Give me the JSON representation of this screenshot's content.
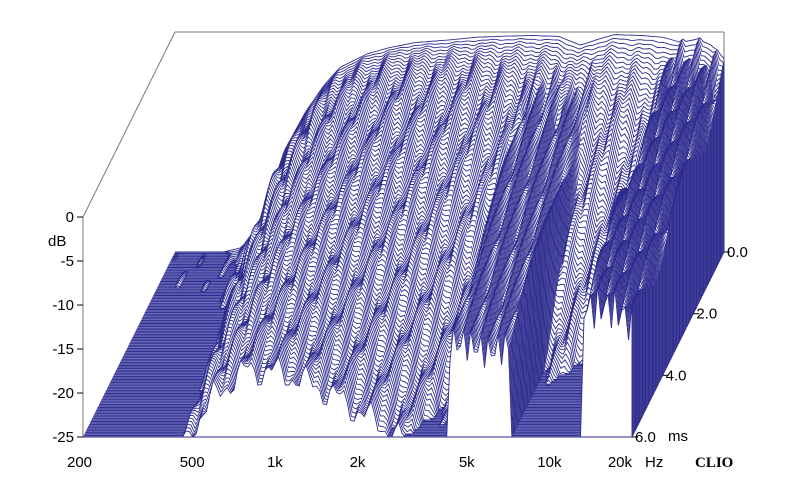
{
  "chart_data": {
    "type": "waterfall",
    "brand": "CLIO",
    "x_axis": {
      "unit": "Hz",
      "scale": "log",
      "range": [
        200,
        20000
      ],
      "ticks": [
        {
          "value": 200,
          "label": "200"
        },
        {
          "value": 500,
          "label": "500"
        },
        {
          "value": 1000,
          "label": "1k"
        },
        {
          "value": 2000,
          "label": "2k"
        },
        {
          "value": 5000,
          "label": "5k"
        },
        {
          "value": 10000,
          "label": "10k"
        },
        {
          "value": 20000,
          "label": "20k"
        }
      ]
    },
    "y_axis": {
      "unit": "dB",
      "range": [
        -25,
        0
      ],
      "ticks": [
        {
          "value": 0,
          "label": "0"
        },
        {
          "value": -5,
          "label": "-5"
        },
        {
          "value": -10,
          "label": "-10"
        },
        {
          "value": -15,
          "label": "-15"
        },
        {
          "value": -20,
          "label": "-20"
        },
        {
          "value": -25,
          "label": "-25"
        }
      ]
    },
    "z_axis": {
      "unit": "ms",
      "range": [
        0,
        6
      ],
      "ticks": [
        {
          "value": 0,
          "label": "0.0"
        },
        {
          "value": 2,
          "label": "2.0"
        },
        {
          "value": 4,
          "label": "4.0"
        },
        {
          "value": 6,
          "label": "6.0"
        }
      ]
    },
    "slices": 120,
    "colors": {
      "line": "#2e2c8e",
      "floor": "#7f7fc6",
      "frame": "#7a7a7a"
    },
    "front_response_db": [
      {
        "hz": 200,
        "db": -25
      },
      {
        "hz": 250,
        "db": -25
      },
      {
        "hz": 300,
        "db": -25
      },
      {
        "hz": 350,
        "db": -24.5
      },
      {
        "hz": 400,
        "db": -22
      },
      {
        "hz": 450,
        "db": -18
      },
      {
        "hz": 500,
        "db": -13.5
      },
      {
        "hz": 600,
        "db": -9
      },
      {
        "hz": 700,
        "db": -6
      },
      {
        "hz": 800,
        "db": -4
      },
      {
        "hz": 1000,
        "db": -2.5
      },
      {
        "hz": 1200,
        "db": -1.8
      },
      {
        "hz": 1500,
        "db": -1.2
      },
      {
        "hz": 2000,
        "db": -0.9
      },
      {
        "hz": 2500,
        "db": -0.6
      },
      {
        "hz": 3000,
        "db": -0.5
      },
      {
        "hz": 4000,
        "db": -0.4
      },
      {
        "hz": 5000,
        "db": -0.5
      },
      {
        "hz": 6000,
        "db": -1.5
      },
      {
        "hz": 7000,
        "db": -0.8
      },
      {
        "hz": 8000,
        "db": -0.3
      },
      {
        "hz": 10000,
        "db": -0.4
      },
      {
        "hz": 12000,
        "db": -0.6
      },
      {
        "hz": 14000,
        "db": -1.2
      },
      {
        "hz": 16000,
        "db": -0.8
      },
      {
        "hz": 18000,
        "db": -1.5
      },
      {
        "hz": 20000,
        "db": -3
      }
    ]
  }
}
